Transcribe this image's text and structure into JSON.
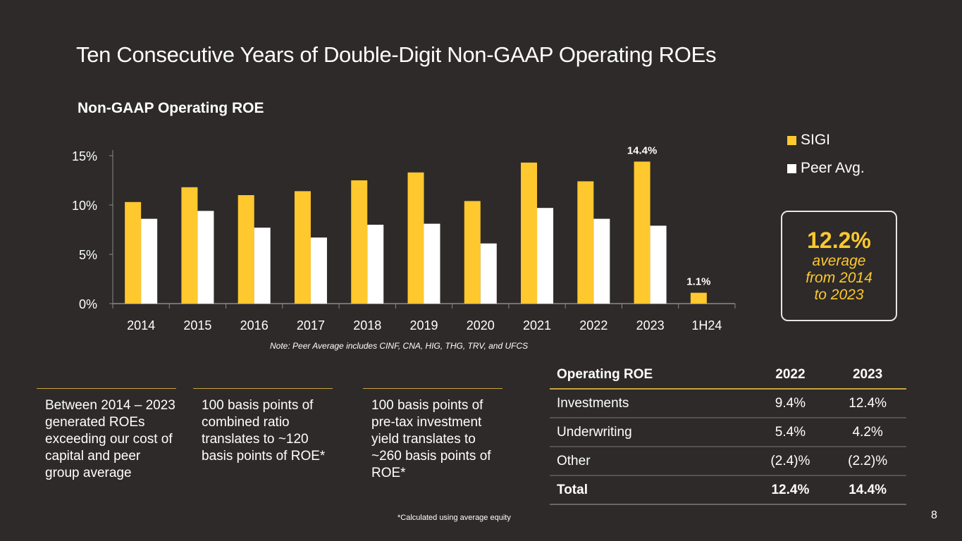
{
  "slide": {
    "title": "Ten Consecutive Years of Double-Digit Non-GAAP Operating ROEs",
    "subtitle": "Non-GAAP Operating ROE",
    "note": "Note: Peer Average includes CINF, CNA, HIG, THG, TRV, and UFCS",
    "footnote": "*Calculated using average equity",
    "page_number": "8"
  },
  "average_box": {
    "value": "12.2%",
    "lines": [
      "average",
      "from 2014",
      "to 2023"
    ]
  },
  "callouts": [
    {
      "text": "Between 2014 – 2023 generated ROEs exceeding our cost of capital and peer group average"
    },
    {
      "text": "100 basis points of combined ratio translates to ~120 basis points of ROE*"
    },
    {
      "text": "100 basis points of pre-tax investment yield translates to ~260 basis points of ROE*"
    }
  ],
  "table": {
    "headers": [
      "Operating ROE",
      "2022",
      "2023"
    ],
    "rows": [
      [
        "Investments",
        "9.4%",
        "12.4%"
      ],
      [
        "Underwriting",
        "5.4%",
        "4.2%"
      ],
      [
        "Other",
        "(2.4)%",
        "(2.2)%"
      ]
    ],
    "total": [
      "Total",
      "12.4%",
      "14.4%"
    ]
  },
  "chart_data": {
    "type": "bar",
    "title": "Non-GAAP Operating ROE",
    "xlabel": "",
    "ylabel": "",
    "categories": [
      "2014",
      "2015",
      "2016",
      "2017",
      "2018",
      "2019",
      "2020",
      "2021",
      "2022",
      "2023",
      "1H24"
    ],
    "series": [
      {
        "name": "SIGI",
        "color": "#ffc82e",
        "values": [
          10.3,
          11.8,
          11.0,
          11.4,
          12.5,
          13.3,
          10.4,
          14.3,
          12.4,
          14.4,
          1.1
        ]
      },
      {
        "name": "Peer Avg.",
        "color": "#ffffff",
        "values": [
          8.6,
          9.4,
          7.7,
          6.7,
          8.0,
          8.1,
          6.1,
          9.7,
          8.6,
          7.9,
          null
        ]
      }
    ],
    "data_labels": [
      {
        "category": "2023",
        "series": "SIGI",
        "text": "14.4%"
      },
      {
        "category": "1H24",
        "series": "SIGI",
        "text": "1.1%"
      }
    ],
    "yticks": [
      "0%",
      "5%",
      "10%",
      "15%"
    ],
    "ytick_values": [
      0,
      5,
      10,
      15
    ],
    "ylim": [
      0,
      15
    ],
    "grid": false,
    "legend_position": "top-right",
    "colors": {
      "axis": "#8c8a89",
      "text": "#ffffff",
      "accent": "#ffc82e"
    }
  }
}
